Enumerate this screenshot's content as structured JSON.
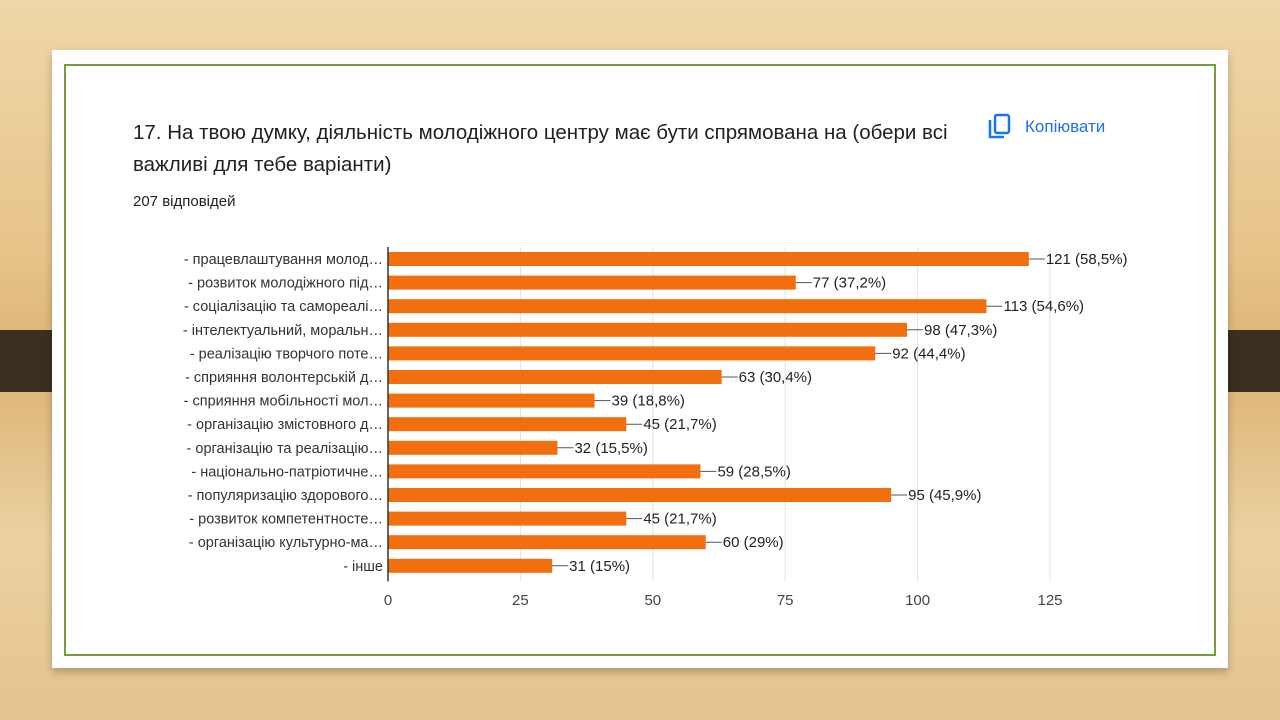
{
  "header": {
    "title": "17. На твою думку, діяльність молодіжного центру має бути спрямована на (обери всі важливі для тебе варіанти)",
    "responses": "207 відповідей",
    "copy_label": "Копіювати"
  },
  "chart_data": {
    "type": "bar",
    "orientation": "horizontal",
    "categories": [
      "- працевлаштування молод…",
      "- розвиток молодіжного під…",
      "- соціалізацію та самореалі…",
      "- інтелектуальний, моральн…",
      "- реалізацію творчого поте…",
      "- сприяння волонтерській д…",
      "- сприяння мобільності мол…",
      "- організацію змістовного д…",
      "- організацію та реалізацію…",
      "- національно-патріотичне…",
      "- популяризацію здорового…",
      "- розвиток компетентносте…",
      "- організацію культурно-ма…",
      "- інше"
    ],
    "values": [
      121,
      77,
      113,
      98,
      92,
      63,
      39,
      45,
      32,
      59,
      95,
      45,
      60,
      31
    ],
    "data_labels": [
      "121 (58,5%)",
      "77 (37,2%)",
      "113 (54,6%)",
      "98 (47,3%)",
      "92 (44,4%)",
      "63 (30,4%)",
      "39 (18,8%)",
      "45 (21,7%)",
      "32 (15,5%)",
      "59 (28,5%)",
      "95 (45,9%)",
      "45 (21,7%)",
      "60 (29%)",
      "31 (15%)"
    ],
    "xlim": [
      0,
      125
    ],
    "xticks": [
      "0",
      "25",
      "50",
      "75",
      "100",
      "125"
    ],
    "grid": true,
    "bar_color": "#f26f0f"
  }
}
